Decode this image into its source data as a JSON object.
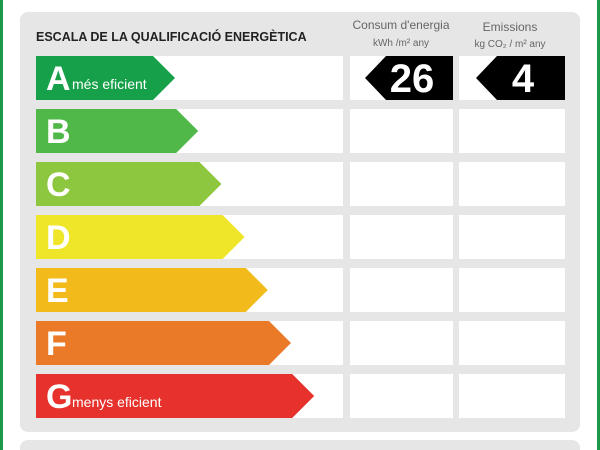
{
  "header": {
    "title": "ESCALA DE LA QUALIFICACIÓ ENERGÈTICA",
    "columns": [
      {
        "title": "Consum d'energia",
        "unit": "kWh /m² any"
      },
      {
        "title": "Emissions",
        "unit": "kg CO₂ / m² any"
      }
    ]
  },
  "rows": [
    {
      "letter": "A",
      "label": "més eficient",
      "color": "#16a04a",
      "consumption": "26",
      "emissions": "4"
    },
    {
      "letter": "B",
      "color": "#4fb848"
    },
    {
      "letter": "C",
      "color": "#8dc63f"
    },
    {
      "letter": "D",
      "color": "#efe62a"
    },
    {
      "letter": "E",
      "color": "#f2bb1b"
    },
    {
      "letter": "F",
      "color": "#ea7a27"
    },
    {
      "letter": "G",
      "label": "menys eficient",
      "color": "#e6312c"
    }
  ]
}
